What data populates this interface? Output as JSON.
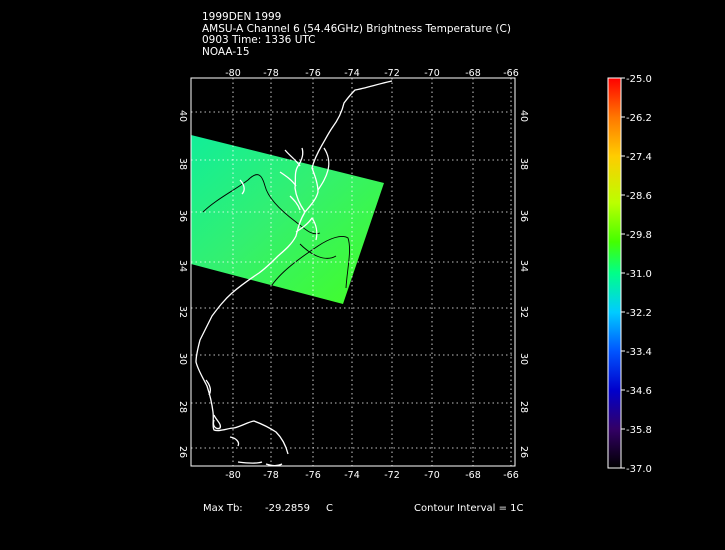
{
  "header": {
    "line1": "1999DEN 1999",
    "line2": "AMSU-A Channel 6 (54.46GHz) Brightness Temperature (C)",
    "line3": "0903 Time: 1336 UTC",
    "line4": "NOAA-15"
  },
  "footer": {
    "max_label": "Max Tb:",
    "max_value": "-29.2859",
    "max_unit": "C",
    "contour_text": "Contour Interval = 1C"
  },
  "map": {
    "lon_ticks": [
      "-80",
      "-78",
      "-76",
      "-74",
      "-72",
      "-70",
      "-68",
      "-66"
    ],
    "lat_ticks": [
      "40",
      "38",
      "36",
      "34",
      "32",
      "30",
      "28",
      "26"
    ],
    "swath_color": "#33ff66",
    "coast_color": "#ffffff",
    "grid_color": "#ffffff"
  },
  "colorbar": {
    "labels": [
      "-25.0",
      "-26.2",
      "-27.4",
      "-28.6",
      "-29.8",
      "-31.0",
      "-32.2",
      "-33.4",
      "-34.6",
      "-35.8",
      "-37.0"
    ],
    "colors": [
      "#ff0000",
      "#ff7700",
      "#ffcc00",
      "#bbff00",
      "#44ff00",
      "#00ff88",
      "#00ccff",
      "#0055ff",
      "#0000cc",
      "#330066",
      "#000000"
    ]
  }
}
